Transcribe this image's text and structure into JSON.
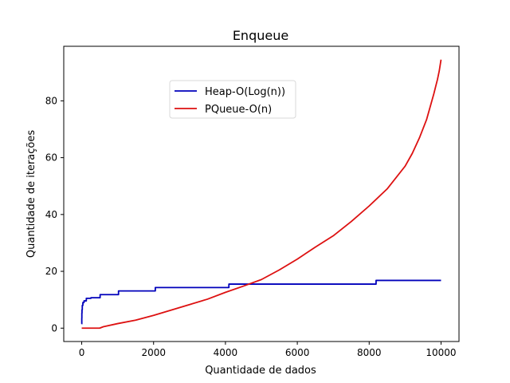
{
  "chart_data": {
    "type": "line",
    "title": "Enqueue",
    "xlabel": "Quantidade de dados",
    "ylabel": "Quantidade de iterações",
    "xlim": [
      -500,
      10500
    ],
    "ylim": [
      -4.7,
      99.2
    ],
    "xticks": [
      0,
      2000,
      4000,
      6000,
      8000,
      10000
    ],
    "xtick_labels": [
      "0",
      "2000",
      "4000",
      "6000",
      "8000",
      "10000"
    ],
    "yticks": [
      0,
      20,
      40,
      60,
      80
    ],
    "ytick_labels": [
      "0",
      "20",
      "40",
      "60",
      "80"
    ],
    "grid": false,
    "legend_position": "upper-center",
    "series": [
      {
        "name": "Heap-O(Log(n))",
        "color": "#0000bb",
        "style": "step",
        "x": [
          1,
          2,
          4,
          8,
          16,
          32,
          64,
          128,
          256,
          512,
          1024,
          2048,
          4096,
          8192,
          10000
        ],
        "y": [
          1.5,
          3.5,
          5.3,
          6.5,
          8.0,
          9.0,
          9.6,
          10.5,
          10.7,
          11.8,
          13.1,
          14.3,
          15.5,
          16.8,
          16.8
        ]
      },
      {
        "name": "PQueue-O(n)",
        "color": "#dd1111",
        "style": "line",
        "x": [
          0,
          500,
          600,
          1000,
          1500,
          2000,
          2500,
          3000,
          3500,
          4000,
          4500,
          5000,
          5500,
          6000,
          6500,
          7000,
          7500,
          8000,
          8500,
          9000,
          9200,
          9400,
          9600,
          9700,
          9800,
          9850,
          9900,
          9950,
          10000
        ],
        "y": [
          0,
          0,
          0.5,
          1.6,
          2.8,
          4.5,
          6.4,
          8.3,
          10.2,
          12.6,
          14.8,
          17.1,
          20.5,
          24.3,
          28.5,
          32.5,
          37.5,
          43.0,
          49.0,
          57.0,
          61.5,
          67.0,
          73.5,
          78.0,
          82.5,
          85.0,
          87.5,
          90.5,
          94.5
        ]
      }
    ]
  }
}
